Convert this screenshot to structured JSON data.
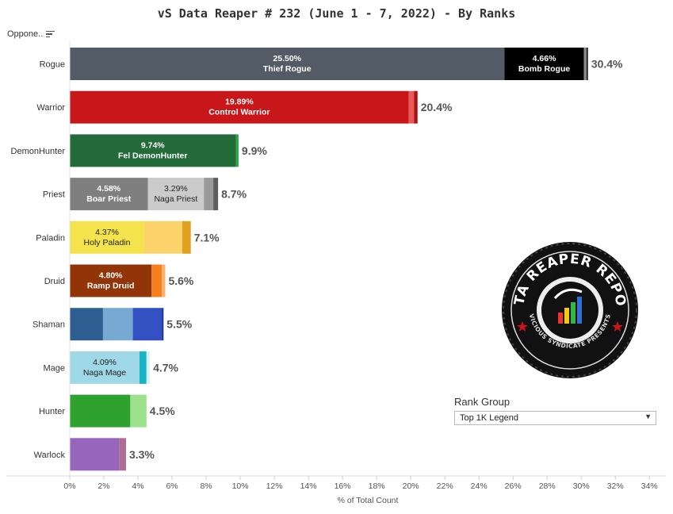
{
  "title": "vS Data Reaper #  232 (June 1 - 7, 2022) - By Ranks",
  "sort_control": {
    "label": "Oppone..",
    "icon": "sort-icon"
  },
  "rank_group": {
    "label": "Rank Group",
    "selected": "Top 1K Legend",
    "icon": "dropdown-arrow-icon"
  },
  "logo": {
    "top_text": "DATA REAPER REPORT",
    "bottom_text": "VICIOUS SYNDICATE PRESENTS"
  },
  "chart_data": {
    "type": "bar",
    "orientation": "horizontal",
    "stacked": true,
    "xlabel": "% of Total Count",
    "xlim": [
      0,
      34.5
    ],
    "ticks": [
      0,
      2,
      4,
      6,
      8,
      10,
      12,
      14,
      16,
      18,
      20,
      22,
      24,
      26,
      28,
      30,
      32,
      34
    ],
    "tick_labels": [
      "0%",
      "2%",
      "4%",
      "6%",
      "8%",
      "10%",
      "12%",
      "14%",
      "16%",
      "18%",
      "20%",
      "22%",
      "24%",
      "26%",
      "28%",
      "30%",
      "32%",
      "34%"
    ],
    "grid": false,
    "categories": [
      {
        "name": "Rogue",
        "total_label": "30.4%",
        "segments": [
          {
            "value": 25.5,
            "color": "#535c66",
            "pct_label": "25.50%",
            "name": "Thief Rogue",
            "label_color": "#ffffff",
            "bold": true
          },
          {
            "value": 4.66,
            "color": "#000000",
            "pct_label": "4.66%",
            "name": "Bomb Rogue",
            "label_color": "#ffffff",
            "bold": true
          },
          {
            "value": 0.14,
            "color": "#8a8a8a"
          },
          {
            "value": 0.1,
            "color": "#2a2a2a"
          }
        ]
      },
      {
        "name": "Warrior",
        "total_label": "20.4%",
        "segments": [
          {
            "value": 19.89,
            "color": "#c8161a",
            "pct_label": "19.89%",
            "name": "Control Warrior",
            "label_color": "#ffffff",
            "bold": true
          },
          {
            "value": 0.3,
            "color": "#e85a5a"
          },
          {
            "value": 0.21,
            "color": "#b01010"
          }
        ]
      },
      {
        "name": "DemonHunter",
        "total_label": "9.9%",
        "segments": [
          {
            "value": 9.74,
            "color": "#246b3a",
            "pct_label": "9.74%",
            "name": "Fel DemonHunter",
            "label_color": "#ffffff",
            "bold": true
          },
          {
            "value": 0.16,
            "color": "#2fa54a"
          }
        ]
      },
      {
        "name": "Priest",
        "total_label": "8.7%",
        "segments": [
          {
            "value": 4.58,
            "color": "#7f7f7f",
            "pct_label": "4.58%",
            "name": "Boar Priest",
            "label_color": "#ffffff",
            "bold": true
          },
          {
            "value": 3.29,
            "color": "#cbcbcb",
            "pct_label": "3.29%",
            "name": "Naga Priest",
            "label_color": "#222222",
            "bold": false
          },
          {
            "value": 0.55,
            "color": "#9a9a9a"
          },
          {
            "value": 0.28,
            "color": "#5e5e5e"
          }
        ]
      },
      {
        "name": "Paladin",
        "total_label": "7.1%",
        "segments": [
          {
            "value": 4.37,
            "color": "#f5e34e",
            "pct_label": "4.37%",
            "name": "Holy Paladin",
            "label_color": "#222222",
            "bold": false
          },
          {
            "value": 2.23,
            "color": "#fcd36a"
          },
          {
            "value": 0.5,
            "color": "#e0a21d"
          }
        ]
      },
      {
        "name": "Druid",
        "total_label": "5.6%",
        "segments": [
          {
            "value": 4.8,
            "color": "#913509",
            "pct_label": "4.80%",
            "name": "Ramp Druid",
            "label_color": "#ffffff",
            "bold": true
          },
          {
            "value": 0.6,
            "color": "#f57f1e"
          },
          {
            "value": 0.2,
            "color": "#fcb070"
          }
        ]
      },
      {
        "name": "Shaman",
        "total_label": "5.5%",
        "segments": [
          {
            "value": 1.95,
            "color": "#2f5f92"
          },
          {
            "value": 1.75,
            "color": "#78a9d2"
          },
          {
            "value": 1.7,
            "color": "#3451c4"
          },
          {
            "value": 0.1,
            "color": "#1d2f85"
          }
        ]
      },
      {
        "name": "Mage",
        "total_label": "4.7%",
        "segments": [
          {
            "value": 4.09,
            "color": "#9fd9e7",
            "pct_label": "4.09%",
            "name": "Naga Mage",
            "label_color": "#222222",
            "bold": false
          },
          {
            "value": 0.41,
            "color": "#19b3c8"
          },
          {
            "value": 0.2,
            "color": "#d9f4f8"
          }
        ]
      },
      {
        "name": "Hunter",
        "total_label": "4.5%",
        "segments": [
          {
            "value": 3.55,
            "color": "#2ea12e"
          },
          {
            "value": 0.95,
            "color": "#9be08b"
          }
        ]
      },
      {
        "name": "Warlock",
        "total_label": "3.3%",
        "segments": [
          {
            "value": 2.9,
            "color": "#9566bb"
          },
          {
            "value": 0.4,
            "color": "#b06b97"
          }
        ]
      }
    ]
  }
}
